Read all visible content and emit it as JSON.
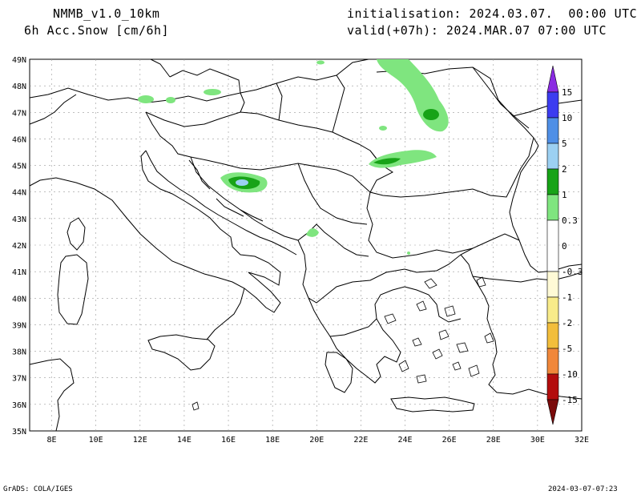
{
  "header": {
    "model": "NMMB_v1.0_10km",
    "field": "6h Acc.Snow [cm/6h]",
    "init": "initialisation: 2024.03.07.  00:00 UTC",
    "valid": "valid(+07h): 2024.MAR.07 07:00 UTC"
  },
  "map": {
    "lat_labels": [
      "49N",
      "48N",
      "47N",
      "46N",
      "45N",
      "44N",
      "43N",
      "42N",
      "41N",
      "40N",
      "39N",
      "38N",
      "37N",
      "36N",
      "35N"
    ],
    "lon_labels": [
      "8E",
      "10E",
      "12E",
      "14E",
      "16E",
      "18E",
      "20E",
      "22E",
      "24E",
      "26E",
      "28E",
      "30E",
      "32E"
    ],
    "lat_range": [
      35,
      49
    ],
    "lon_range": [
      7,
      32
    ]
  },
  "colorbar": {
    "labels": [
      "15",
      "10",
      "5",
      "2",
      "1",
      "0.3",
      "0",
      "-0.3",
      "-1",
      "-2",
      "-5",
      "-10",
      "-15"
    ],
    "colors": {
      "c15": "#8a2be2",
      "c10": "#3c3cf0",
      "c5": "#4f8fe6",
      "c2": "#9cd0f2",
      "c1": "#17a317",
      "c03": "#7fe57f",
      "c0": "#ffffff",
      "n03": "#fffad6",
      "n1": "#f8eb8a",
      "n2": "#f2be3c",
      "n5": "#f0873a",
      "n10": "#e81414",
      "n15": "#b30d0d",
      "n20": "#7a0a0a"
    }
  },
  "footer": {
    "left": "GrADS: COLA/IGES",
    "right": "2024-03-07-07:23"
  }
}
